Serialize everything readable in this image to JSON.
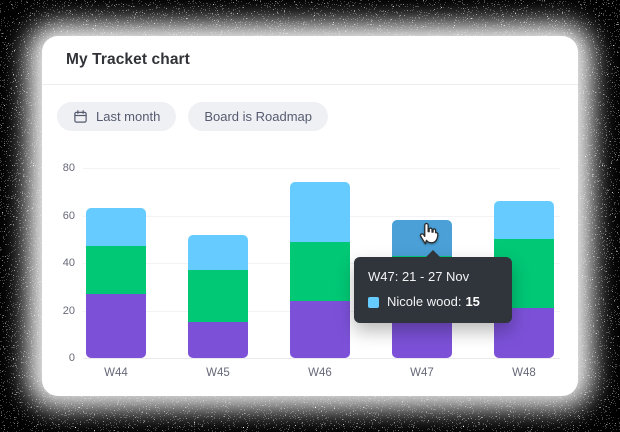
{
  "card": {
    "title": "My Tracket chart"
  },
  "filters": [
    {
      "icon": "calendar-icon",
      "label": "Last month"
    },
    {
      "icon": null,
      "label": "Board is Roadmap"
    }
  ],
  "chart_data": {
    "type": "bar",
    "stacked": true,
    "stack_order": "bottom-to-top",
    "categories": [
      "W44",
      "W45",
      "W46",
      "W47",
      "W48"
    ],
    "series": [
      {
        "name": "",
        "color": "#7c51d8",
        "values": [
          27,
          15,
          24,
          21,
          21
        ]
      },
      {
        "name": "",
        "color": "#00c875",
        "values": [
          20,
          22,
          25,
          22,
          29
        ]
      },
      {
        "name": "Nicole wood",
        "color": "#66ccff",
        "values": [
          16,
          15,
          25,
          15,
          16
        ]
      }
    ],
    "totals": [
      63,
      52,
      74,
      58,
      66
    ],
    "ylim": [
      0,
      80
    ],
    "yticks": [
      0,
      20,
      40,
      60,
      80
    ],
    "xlabel": "",
    "ylabel": "",
    "grid": true,
    "legend": "none",
    "hover": {
      "category": "W47",
      "series_index": 2,
      "hover_color": "#4aa0d7"
    }
  },
  "tooltip": {
    "title": "W47: 21 - 27 Nov",
    "series_label": "Nicole wood:",
    "value": "15",
    "swatch_color": "#66ccff",
    "bg_color": "#30343b"
  }
}
